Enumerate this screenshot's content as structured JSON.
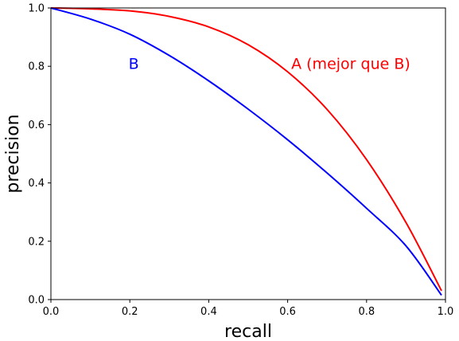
{
  "chart_data": {
    "type": "line",
    "title": "",
    "xlabel": "recall",
    "ylabel": "precision",
    "xlim": [
      0,
      1
    ],
    "ylim": [
      0,
      1
    ],
    "xticks": [
      "0.0",
      "0.2",
      "0.4",
      "0.6",
      "0.8",
      "1.0"
    ],
    "yticks": [
      "0.0",
      "0.2",
      "0.4",
      "0.6",
      "0.8",
      "1.0"
    ],
    "grid": false,
    "series": [
      {
        "name": "A (mejor que B)",
        "color": "#ff0000",
        "x": [
          0,
          0.1,
          0.2,
          0.3,
          0.4,
          0.5,
          0.6,
          0.7,
          0.8,
          0.9,
          0.99
        ],
        "y": [
          1.0,
          0.997,
          0.99,
          0.971,
          0.935,
          0.874,
          0.781,
          0.652,
          0.48,
          0.264,
          0.03
        ]
      },
      {
        "name": "B",
        "color": "#0000ff",
        "x": [
          0,
          0.1,
          0.2,
          0.3,
          0.4,
          0.5,
          0.6,
          0.7,
          0.8,
          0.9,
          0.99
        ],
        "y": [
          1.0,
          0.962,
          0.91,
          0.837,
          0.75,
          0.653,
          0.548,
          0.434,
          0.313,
          0.184,
          0.015
        ]
      }
    ],
    "annotations": [
      {
        "text": "B",
        "x": 0.21,
        "y": 0.81,
        "color": "#0000ff"
      },
      {
        "text": "A (mejor que B)",
        "x": 0.76,
        "y": 0.81,
        "color": "#ff0000"
      }
    ]
  }
}
